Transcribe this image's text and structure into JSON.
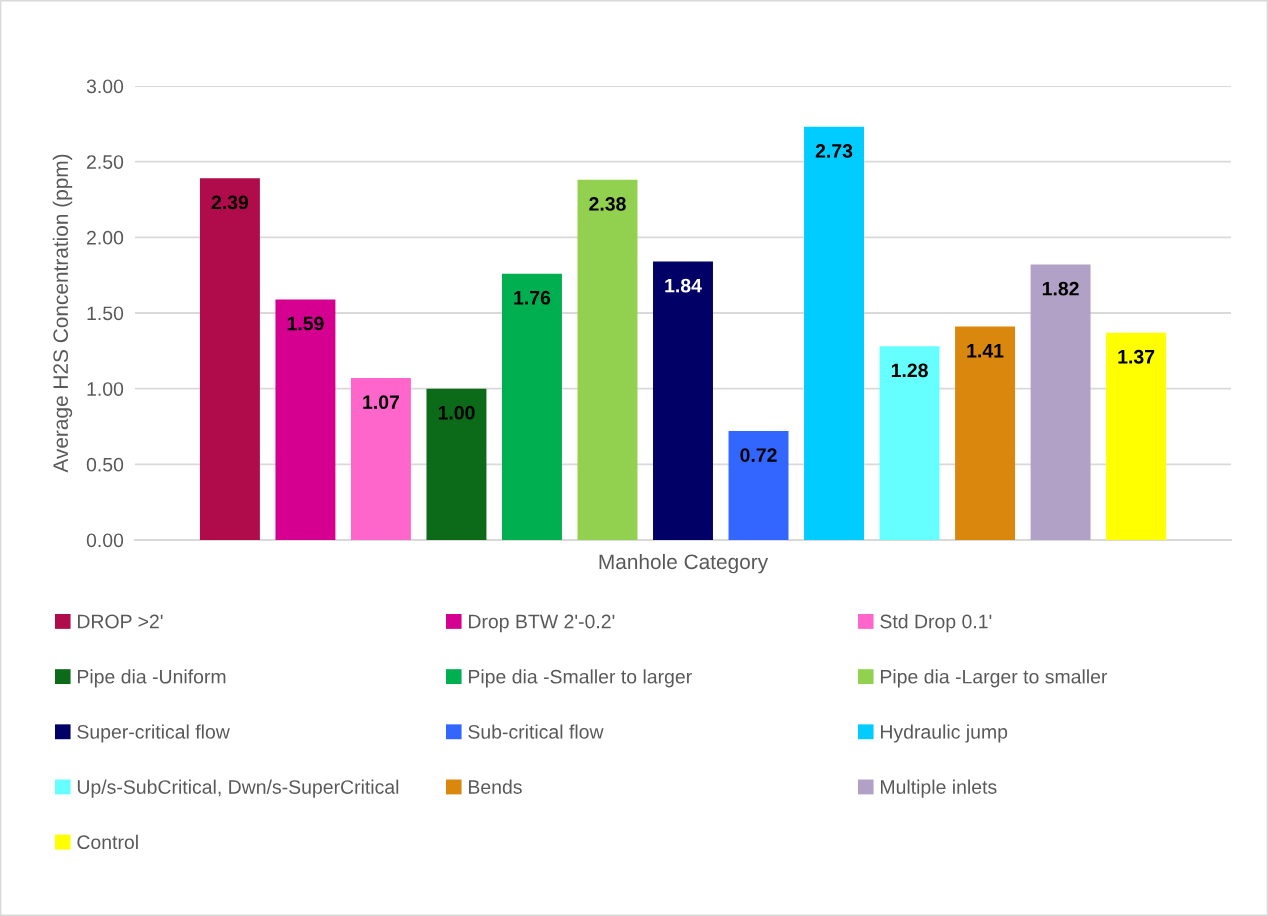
{
  "chart_data": {
    "type": "bar",
    "xlabel": "Manhole Category",
    "ylabel": "Average H2S Concentration (ppm)",
    "categories": [
      null
    ],
    "series": [
      {
        "name": "DROP >2'",
        "color": "#b00b4a",
        "values": [
          2.39
        ],
        "value_labels": [
          "2.39"
        ]
      },
      {
        "name": "Drop BTW 2'-0.2'",
        "color": "#d5008f",
        "values": [
          1.59
        ],
        "value_labels": [
          "1.59"
        ]
      },
      {
        "name": "Std Drop 0.1'",
        "color": "#ff66cc",
        "values": [
          1.07
        ],
        "value_labels": [
          "1.07"
        ]
      },
      {
        "name": "Pipe dia -Uniform",
        "color": "#0b6b18",
        "values": [
          1.0
        ],
        "value_labels": [
          "1.00"
        ]
      },
      {
        "name": "Pipe dia -Smaller to larger",
        "color": "#00b050",
        "values": [
          1.76
        ],
        "value_labels": [
          "1.76"
        ]
      },
      {
        "name": "Pipe dia -Larger to smaller",
        "color": "#92d050",
        "values": [
          2.38
        ],
        "value_labels": [
          "2.38"
        ]
      },
      {
        "name": "Super-critical flow",
        "color": "#000066",
        "values": [
          1.84
        ],
        "value_labels": [
          "1.84"
        ]
      },
      {
        "name": "Sub-critical flow",
        "color": "#3366ff",
        "values": [
          0.72
        ],
        "value_labels": [
          "0.72"
        ]
      },
      {
        "name": "Hydraulic jump",
        "color": "#00ccff",
        "values": [
          2.73
        ],
        "value_labels": [
          "2.73"
        ]
      },
      {
        "name": "Up/s-SubCritical, Dwn/s-SuperCritical",
        "color": "#66ffff",
        "values": [
          1.28
        ],
        "value_labels": [
          "1.28"
        ]
      },
      {
        "name": "Bends",
        "color": "#da870d",
        "values": [
          1.41
        ],
        "value_labels": [
          "1.41"
        ]
      },
      {
        "name": "Multiple inlets",
        "color": "#b2a1c7",
        "values": [
          1.82
        ],
        "value_labels": [
          "1.82"
        ]
      },
      {
        "name": "Control",
        "color": "#ffff00",
        "values": [
          1.37
        ],
        "value_labels": [
          "1.37"
        ]
      }
    ],
    "ylim": [
      0,
      3
    ],
    "yticks": [
      {
        "value": 0,
        "label": "0.00"
      },
      {
        "value": 0.5,
        "label": "0.50"
      },
      {
        "value": 1,
        "label": "1.00"
      },
      {
        "value": 1.5,
        "label": "1.50"
      },
      {
        "value": 2,
        "label": "2.00"
      },
      {
        "value": 2.5,
        "label": "2.50"
      },
      {
        "value": 3,
        "label": "3.00"
      }
    ],
    "grid": "y",
    "legend": "bottom"
  }
}
